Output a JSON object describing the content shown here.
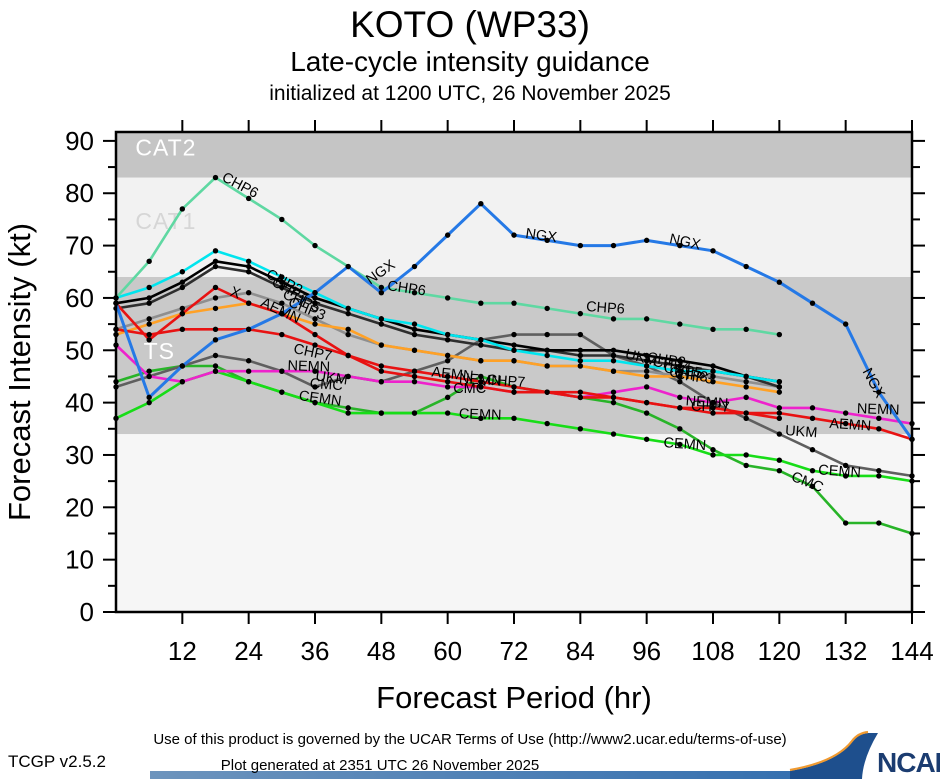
{
  "header": {
    "title": "KOTO (WP33)",
    "subtitle": "Late-cycle intensity guidance",
    "init_line": "initialized at 1200 UTC, 26 November 2025"
  },
  "footer": {
    "terms": "Use of this product is governed by the UCAR Terms of Use (http://www2.ucar.edu/terms-of-use)",
    "version": "TCGP v2.5.2",
    "generated": "Plot generated at 2351 UTC   26 November 2025",
    "ncar": "NCAR",
    "bar_color": "#2f6cae",
    "logo_navy": "#1b3c70",
    "logo_orange": "#f09a30"
  },
  "chart_data": {
    "type": "line",
    "title": "KOTO (WP33) Late-cycle intensity guidance",
    "xlabel": "Forecast Period (hr)",
    "ylabel": "Forecast Intensity (kt)",
    "xlim": [
      0,
      144
    ],
    "ylim": [
      0,
      91.7
    ],
    "x_major_ticks": [
      12,
      24,
      36,
      48,
      60,
      72,
      84,
      96,
      108,
      120,
      132,
      144
    ],
    "y_major_ticks": [
      0,
      10,
      20,
      30,
      40,
      50,
      60,
      70,
      80,
      90
    ],
    "y_minor_ticks": [
      5,
      15,
      25,
      35,
      45,
      55,
      65,
      75,
      85
    ],
    "x_step_hr": 6,
    "grid": false,
    "legend_position": "inline-labels",
    "bands": [
      {
        "name": "below-TS",
        "from": 0,
        "to": 34,
        "color": "#f6f6f6"
      },
      {
        "name": "TS",
        "from": 34,
        "to": 64,
        "color": "#c9c9c9",
        "label": {
          "text": "TS",
          "hr": 5,
          "kt": 48.3,
          "color": "#ffffff"
        }
      },
      {
        "name": "CAT1",
        "from": 64,
        "to": 83,
        "color": "#f2f2f2",
        "label": {
          "text": "CAT1",
          "hr": 3.5,
          "kt": 73.2,
          "color": "#d6d6d6"
        }
      },
      {
        "name": "CAT2",
        "from": 83,
        "to": 91.7,
        "color": "#c5c5c5",
        "label": {
          "text": "CAT2",
          "hr": 3.5,
          "kt": 87.2,
          "color": "#ffffff"
        }
      }
    ],
    "series": [
      {
        "name": "CMC",
        "color": "#28b428",
        "width": 2.6,
        "start_hr": 0,
        "values": [
          44,
          46,
          47,
          47,
          44,
          42,
          40,
          39,
          38,
          38,
          41,
          45,
          43,
          42,
          41,
          40,
          38,
          35,
          31,
          28,
          27,
          24,
          17,
          17,
          15
        ],
        "labels": [
          {
            "text": "CMC",
            "hr": 35,
            "kt": 42.8,
            "rot": 4
          },
          {
            "text": "CMC",
            "hr": 61,
            "kt": 41.8,
            "rot": 0
          },
          {
            "text": "CMC",
            "hr": 122,
            "kt": 25.2,
            "rot": 22
          }
        ]
      },
      {
        "name": "CEMN",
        "color": "#17dd17",
        "width": 2.6,
        "start_hr": 0,
        "values": [
          37,
          40,
          44,
          46,
          44,
          42,
          40,
          38,
          38,
          38,
          38,
          37,
          37,
          36,
          35,
          34,
          33,
          32,
          30,
          30,
          29,
          27,
          26,
          26,
          25
        ],
        "labels": [
          {
            "text": "CEMN",
            "hr": 33,
            "kt": 40.5,
            "rot": 8
          },
          {
            "text": "CEMN",
            "hr": 62,
            "kt": 37,
            "rot": 2
          },
          {
            "text": "CEMN",
            "hr": 99,
            "kt": 31.5,
            "rot": 4
          },
          {
            "text": "CEMN",
            "hr": 127,
            "kt": 26.3,
            "rot": 4
          }
        ]
      },
      {
        "name": "UKM",
        "color": "#5f5f5f",
        "width": 2.6,
        "start_hr": 0,
        "values": [
          43,
          45,
          47,
          49,
          48,
          46,
          43,
          45,
          44,
          46,
          48,
          52,
          53,
          53,
          53,
          49,
          47,
          44,
          40,
          37,
          34,
          31,
          28,
          27,
          26
        ],
        "labels": [
          {
            "text": "UKM",
            "hr": 36,
            "kt": 44.3,
            "rot": 8
          },
          {
            "text": "UKM",
            "hr": 92,
            "kt": 48.5,
            "rot": 14
          },
          {
            "text": "UKM",
            "hr": 121,
            "kt": 33.8,
            "rot": 4
          }
        ]
      },
      {
        "name": "CHP3",
        "color": "#8f8f8f",
        "width": 2.6,
        "start_hr": 0,
        "values": [
          54,
          56,
          58,
          60,
          61,
          59,
          56,
          53,
          51,
          50,
          49,
          48,
          48,
          47,
          47,
          46,
          46,
          45,
          45,
          44,
          43
        ],
        "labels": [
          {
            "text": "CHP3",
            "hr": 31,
            "kt": 58.5,
            "rot": 22
          },
          {
            "text": "CHP3",
            "hr": 101,
            "kt": 44.6,
            "rot": 8
          }
        ]
      },
      {
        "name": "CHP5",
        "color": "#ffa126",
        "width": 2.6,
        "start_hr": 0,
        "values": [
          53,
          55,
          57,
          58,
          59,
          57,
          55,
          54,
          51,
          50,
          49,
          48,
          48,
          47,
          47,
          46,
          45,
          45,
          44,
          43,
          42
        ],
        "labels": [
          {
            "text": "CHP5",
            "hr": 30,
            "kt": 60,
            "rot": 22
          },
          {
            "text": "CHP5",
            "hr": 99,
            "kt": 45.8,
            "rot": 8
          }
        ]
      },
      {
        "name": "CHP8",
        "color": "#2e2e2e",
        "width": 2.6,
        "start_hr": 0,
        "values": [
          58,
          59,
          62,
          66,
          65,
          62,
          59,
          57,
          55,
          53,
          52,
          51,
          50,
          50,
          49,
          49,
          48,
          47,
          46,
          45,
          43
        ],
        "labels": [
          {
            "text": "CHP8",
            "hr": 100,
            "kt": 45,
            "rot": 8
          }
        ]
      },
      {
        "name": "CHP4",
        "color": "#000000",
        "width": 2.6,
        "start_hr": 0,
        "values": [
          59,
          60,
          63,
          67,
          66,
          63,
          60,
          58,
          56,
          54,
          53,
          52,
          51,
          50,
          50,
          50,
          49,
          48,
          47,
          45,
          44
        ],
        "labels": [
          {
            "text": "CHP4",
            "hr": 28,
            "kt": 62.5,
            "rot": 28
          },
          {
            "text": "CHP4",
            "hr": 97,
            "kt": 47,
            "rot": 8
          }
        ]
      },
      {
        "name": "CHP2",
        "color": "#00e5ee",
        "width": 2.6,
        "start_hr": 0,
        "values": [
          60,
          62,
          65,
          69,
          67,
          64,
          61,
          58,
          56,
          55,
          53,
          52,
          50,
          49,
          48,
          48,
          47,
          46,
          46,
          45,
          44
        ],
        "labels": [
          {
            "text": "CHP2",
            "hr": 27,
            "kt": 64,
            "rot": 28
          },
          {
            "text": "CHP2",
            "hr": 96,
            "kt": 47.8,
            "rot": 8
          }
        ]
      },
      {
        "name": "NEMN",
        "color": "#ee22cc",
        "width": 2.6,
        "start_hr": 0,
        "values": [
          51,
          45,
          44,
          46,
          46,
          46,
          46,
          45,
          44,
          44,
          43,
          43,
          42,
          42,
          41,
          42,
          43,
          41,
          40,
          41,
          39,
          39,
          38,
          37,
          36
        ],
        "labels": [
          {
            "text": "NEMN",
            "hr": 31,
            "kt": 46.2,
            "rot": 2
          },
          {
            "text": "NEMN",
            "hr": 62,
            "kt": 43.8,
            "rot": 4
          },
          {
            "text": "NEMN",
            "hr": 103,
            "kt": 39.5,
            "rot": 4
          },
          {
            "text": "NEMN",
            "hr": 134,
            "kt": 38,
            "rot": 2
          }
        ]
      },
      {
        "name": "AEMN",
        "color": "#e81212",
        "width": 2.6,
        "start_hr": 0,
        "values": [
          59,
          52,
          57,
          62,
          59,
          57,
          53,
          49,
          46,
          45,
          44,
          43,
          42,
          42,
          41,
          41,
          40,
          39,
          39,
          38,
          38,
          37,
          36,
          35,
          33
        ],
        "labels": [
          {
            "text": "AEMN",
            "hr": 26,
            "kt": 58.5,
            "rot": 25
          },
          {
            "text": "AEMN",
            "hr": 57,
            "kt": 45,
            "rot": 6
          },
          {
            "text": "AEMN",
            "hr": 129,
            "kt": 35.2,
            "rot": 4
          }
        ]
      },
      {
        "name": "CHP7",
        "color": "#e81212",
        "width": 2.6,
        "start_hr": 0,
        "values": [
          54,
          53,
          54,
          54,
          54,
          53,
          51,
          49,
          47,
          46,
          45,
          44,
          43,
          42,
          42,
          41,
          40,
          39,
          38,
          38,
          37
        ],
        "labels": [
          {
            "text": "CHP7",
            "hr": 32,
            "kt": 49.5,
            "rot": 12
          },
          {
            "text": "CHP7",
            "hr": 67,
            "kt": 43.5,
            "rot": 4
          },
          {
            "text": "CHP7",
            "hr": 104,
            "kt": 38.5,
            "rot": 2
          }
        ]
      },
      {
        "name": "CHP6",
        "color": "#5fd8a2",
        "width": 2.6,
        "start_hr": 0,
        "values": [
          60,
          67,
          77,
          83,
          79,
          75,
          70,
          66,
          62,
          61,
          60,
          59,
          59,
          58,
          57,
          56,
          56,
          55,
          54,
          54,
          53
        ],
        "labels": [
          {
            "text": "CHP6",
            "hr": 19,
            "kt": 82.5,
            "rot": 28
          },
          {
            "text": "CHP6",
            "hr": 49,
            "kt": 61.5,
            "rot": 8
          },
          {
            "text": "CHP6",
            "hr": 85,
            "kt": 57.5,
            "rot": 4
          }
        ]
      },
      {
        "name": "NGX",
        "color": "#2579e6",
        "width": 3.0,
        "start_hr": 0,
        "values": [
          59,
          41,
          47,
          52,
          54,
          57,
          61,
          66,
          61,
          66,
          72,
          78,
          72,
          71,
          70,
          70,
          71,
          70,
          69,
          66,
          63,
          59,
          55,
          42,
          33
        ],
        "labels": [
          {
            "text": "NGX",
            "hr": 46,
            "kt": 62.5,
            "rot": -35
          },
          {
            "text": "NGX",
            "hr": 74,
            "kt": 71.5,
            "rot": 8
          },
          {
            "text": "NGX",
            "hr": 100,
            "kt": 70.5,
            "rot": 12
          },
          {
            "text": "NGX",
            "hr": 135,
            "kt": 46,
            "rot": 62
          }
        ]
      }
    ],
    "annotations": [
      {
        "text": "X",
        "hr": 20.5,
        "kt": 60.5,
        "rot": 20
      }
    ],
    "marker": {
      "shape": "dot",
      "radius": 2.7,
      "color": "#000000"
    }
  }
}
